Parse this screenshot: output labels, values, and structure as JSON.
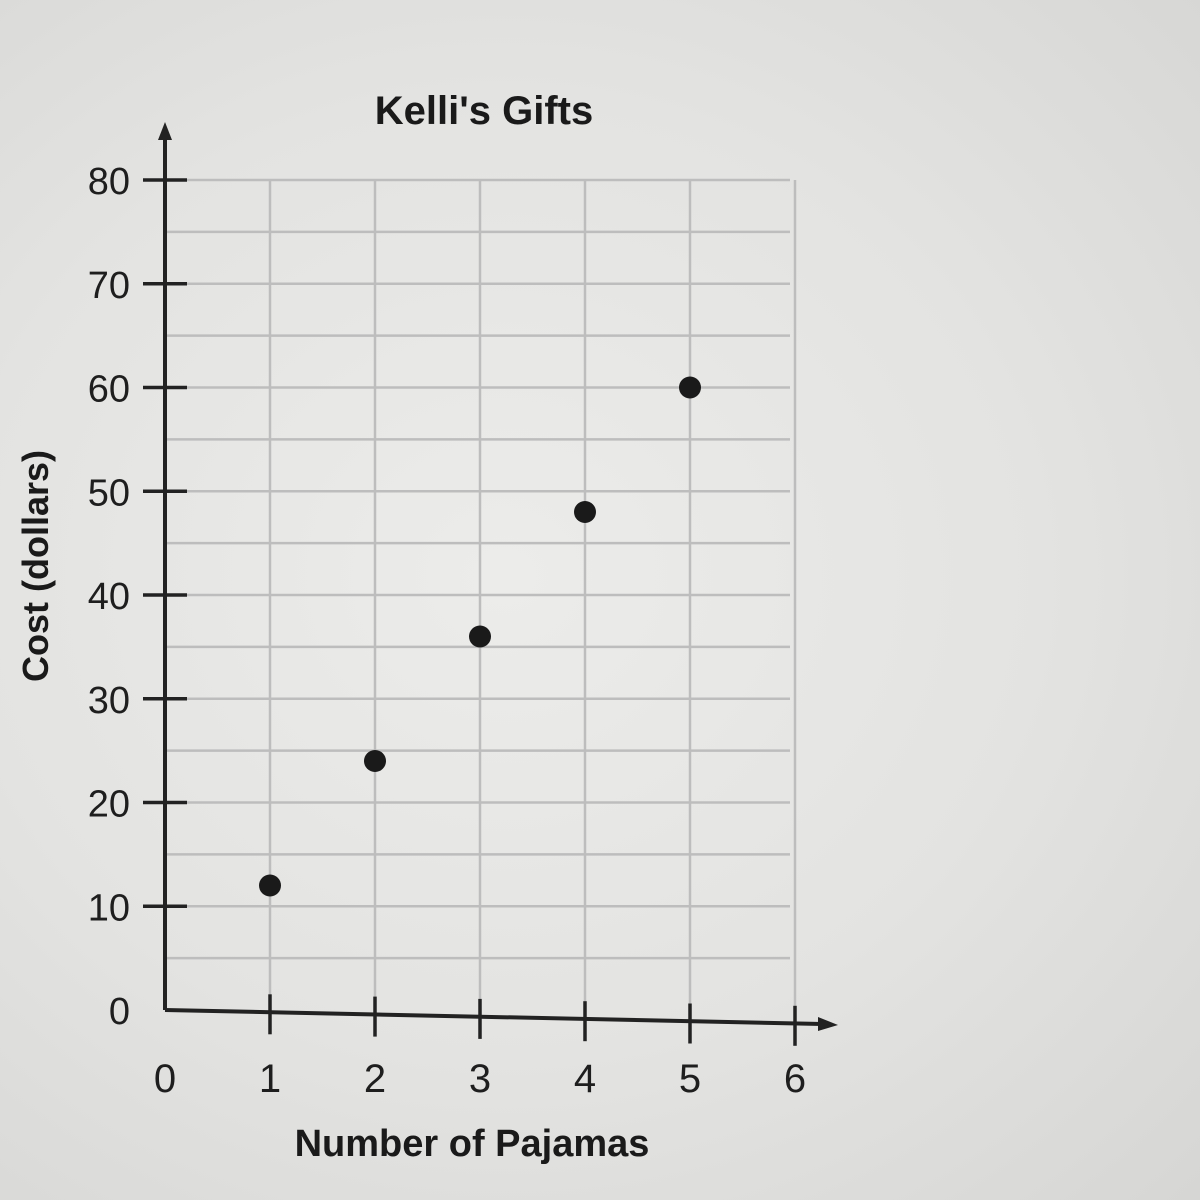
{
  "chart_data": {
    "type": "scatter",
    "title": "Kelli's Gifts",
    "xlabel": "Number of Pajamas",
    "ylabel": "Cost (dollars)",
    "xlim": [
      0,
      6
    ],
    "ylim": [
      0,
      80
    ],
    "x_ticks": [
      "0",
      "1",
      "2",
      "3",
      "4",
      "5",
      "6"
    ],
    "y_ticks": [
      "0",
      "10",
      "20",
      "30",
      "40",
      "50",
      "60",
      "70",
      "80"
    ],
    "grid": true,
    "minor_grid_step_y": 5,
    "series": [
      {
        "x": [
          1,
          2,
          3,
          4,
          5
        ],
        "y": [
          12,
          24,
          36,
          48,
          60
        ]
      }
    ],
    "colors": {
      "point": "#1a1a1a",
      "axis": "#222222",
      "grid": "#bdbdbd"
    }
  }
}
